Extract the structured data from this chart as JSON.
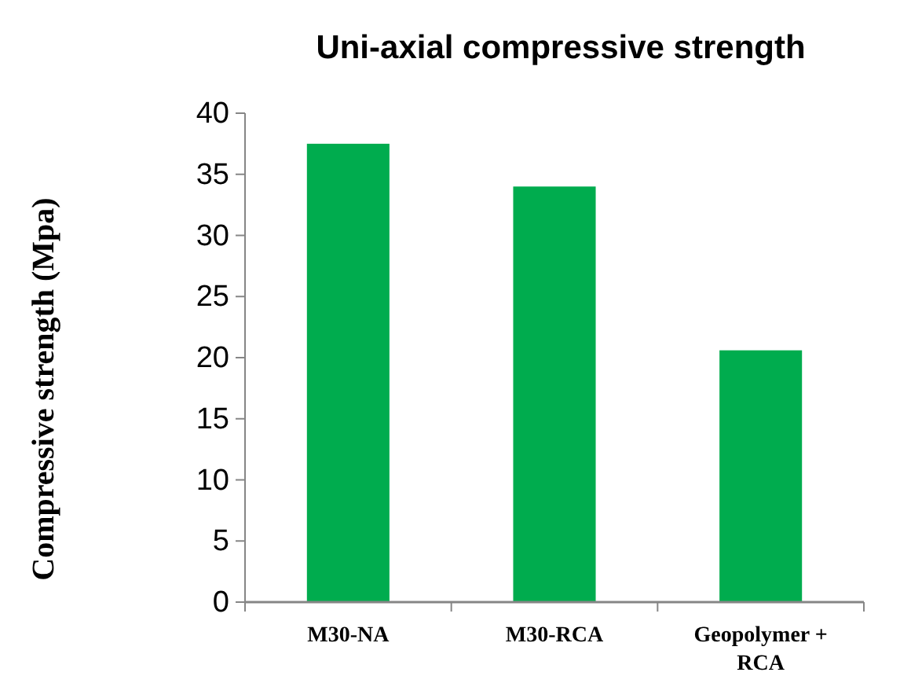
{
  "chart_data": {
    "type": "bar",
    "title": "Uni-axial compressive strength",
    "ylabel": "Compressive strength (Mpa)",
    "categories": [
      "M30-NA",
      "M30-RCA",
      "Geopolymer + RCA"
    ],
    "values": [
      37.5,
      34.0,
      20.6
    ],
    "color": "#00ac4e",
    "ylim": [
      0,
      40
    ],
    "yticks": [
      0,
      5,
      10,
      15,
      20,
      25,
      30,
      35,
      40
    ],
    "grid": false
  }
}
